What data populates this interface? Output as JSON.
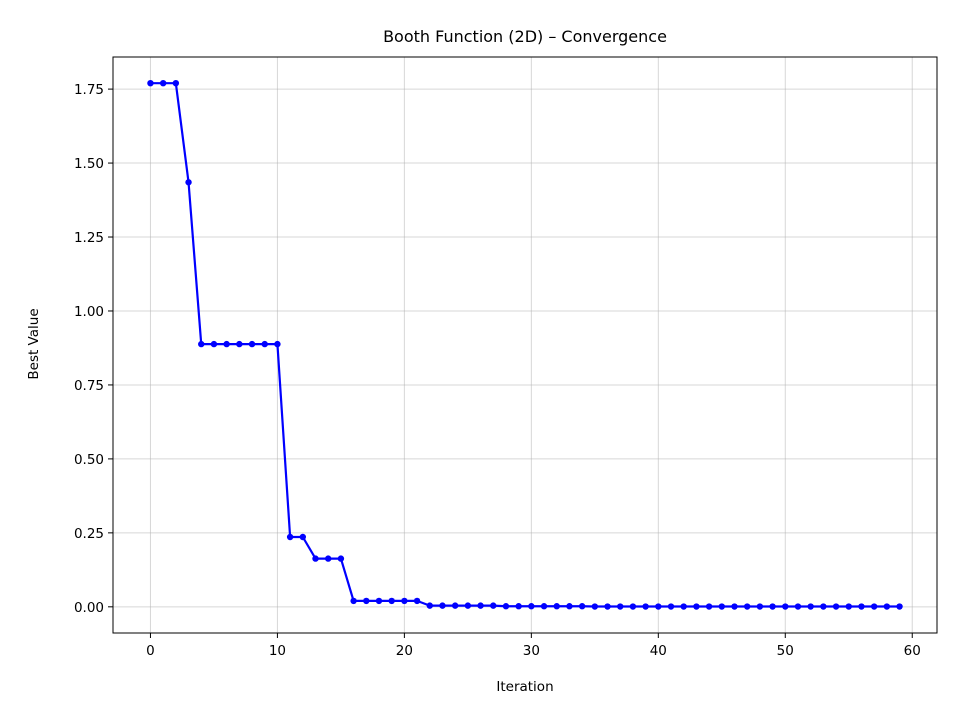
{
  "chart_data": {
    "type": "line",
    "title": "Booth Function (2D) – Convergence",
    "xlabel": "Iteration",
    "ylabel": "Best Value",
    "xlim": [
      -2.95,
      61.95
    ],
    "ylim": [
      -0.0885,
      1.8585
    ],
    "xticks": [
      0,
      10,
      20,
      30,
      40,
      50,
      60
    ],
    "yticks": [
      0.0,
      0.25,
      0.5,
      0.75,
      1.0,
      1.25,
      1.5,
      1.75
    ],
    "ytick_labels": [
      "0.00",
      "0.25",
      "0.50",
      "0.75",
      "1.00",
      "1.25",
      "1.50",
      "1.75"
    ],
    "grid": true,
    "color": "#0000ff",
    "marker": "circle",
    "series": [
      {
        "x": [
          0,
          1,
          2,
          3,
          4,
          5,
          6,
          7,
          8,
          9,
          10,
          11,
          12,
          13,
          14,
          15,
          16,
          17,
          18,
          19,
          20,
          21,
          22,
          23,
          24,
          25,
          26,
          27,
          28,
          29,
          30,
          31,
          32,
          33,
          34,
          35,
          36,
          37,
          38,
          39,
          40,
          41,
          42,
          43,
          44,
          45,
          46,
          47,
          48,
          49,
          50,
          51,
          52,
          53,
          54,
          55,
          56,
          57,
          58,
          59
        ],
        "values": [
          1.77,
          1.77,
          1.77,
          1.435,
          0.888,
          0.888,
          0.888,
          0.888,
          0.888,
          0.888,
          0.888,
          0.236,
          0.236,
          0.163,
          0.163,
          0.163,
          0.02,
          0.02,
          0.02,
          0.02,
          0.02,
          0.02,
          0.004,
          0.004,
          0.004,
          0.004,
          0.004,
          0.004,
          0.002,
          0.002,
          0.002,
          0.002,
          0.002,
          0.002,
          0.002,
          0.001,
          0.001,
          0.001,
          0.001,
          0.001,
          0.001,
          0.001,
          0.001,
          0.001,
          0.001,
          0.001,
          0.001,
          0.001,
          0.001,
          0.001,
          0.001,
          0.001,
          0.001,
          0.001,
          0.001,
          0.001,
          0.001,
          0.001,
          0.001,
          0.001
        ]
      }
    ]
  }
}
